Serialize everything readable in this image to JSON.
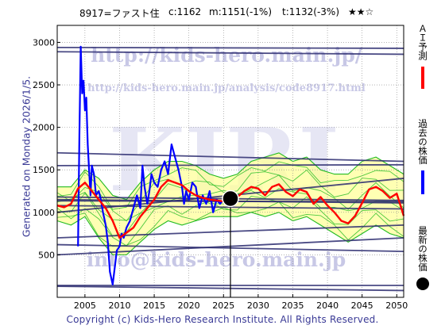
{
  "header": {
    "ticker": "8917=ファスト住",
    "current": "c:1162",
    "mid": "m:1151(-1%)",
    "target": "t:1132(-3%)",
    "rating": "★★☆"
  },
  "generated_label": "Generated on Monday 2026/1/5.",
  "copyright": "Copyright (c) Kids-Hero Research Institute. All Rights Reserved.",
  "watermarks": {
    "url_main": "http://kids-hero.main.jp/",
    "url_analysis": "http://kids-hero.main.jp/analysis/code8917.html",
    "big": "KIRI",
    "email": "info@kids-hero.main.jp"
  },
  "legend": {
    "ai_forecast": "ＡＩ予測",
    "past_price": "過去の株価",
    "latest_price": "最新の株価"
  },
  "colors": {
    "ai_forecast": "#ff0000",
    "past_price": "#0000ff",
    "latest_price": "#000000",
    "band_fill": "#ffff99",
    "band_lines": "#22bb22",
    "trend_lines": "#2a2a6e",
    "watermark": "#c8c8e6"
  },
  "chart_data": {
    "type": "line",
    "xlim": [
      2001,
      2051
    ],
    "ylim": [
      0,
      3200
    ],
    "x_ticks": [
      "2005",
      "2010",
      "2015",
      "2020",
      "2025",
      "2030",
      "2035",
      "2040",
      "2045",
      "2050"
    ],
    "y_ticks": [
      "500",
      "1000",
      "1500",
      "2000",
      "2500",
      "3000"
    ],
    "latest_point": {
      "x": 2026.0,
      "y": 1162
    },
    "series": [
      {
        "name": "過去の株価",
        "x": [
          2004.0,
          2004.2,
          2004.4,
          2004.6,
          2004.8,
          2005.0,
          2005.2,
          2005.4,
          2005.6,
          2005.8,
          2006.0,
          2006.3,
          2006.6,
          2007.0,
          2007.3,
          2007.6,
          2008.0,
          2008.3,
          2008.6,
          2009.0,
          2009.3,
          2009.6,
          2010.0,
          2010.3,
          2010.6,
          2011.0,
          2011.5,
          2012.0,
          2012.5,
          2013.0,
          2013.3,
          2013.6,
          2014.0,
          2014.3,
          2014.6,
          2015.0,
          2015.5,
          2016.0,
          2016.5,
          2017.0,
          2017.5,
          2018.0,
          2018.5,
          2019.0,
          2019.3,
          2019.6,
          2020.0,
          2020.5,
          2021.0,
          2021.5,
          2022.0,
          2022.5,
          2023.0,
          2023.5,
          2024.0,
          2024.5,
          2025.0
        ],
        "values": [
          600,
          1900,
          2950,
          2400,
          2550,
          2200,
          2350,
          1800,
          1500,
          1200,
          1550,
          1450,
          1200,
          1250,
          1150,
          1000,
          850,
          650,
          300,
          150,
          350,
          550,
          600,
          750,
          700,
          820,
          900,
          1050,
          1200,
          1050,
          1550,
          1300,
          1100,
          1250,
          1450,
          1350,
          1300,
          1500,
          1600,
          1450,
          1800,
          1650,
          1500,
          1300,
          1100,
          1250,
          1150,
          1350,
          1300,
          1050,
          1200,
          1100,
          1250,
          1000,
          1150,
          1100,
          1150
        ]
      },
      {
        "name": "ＡＩ予測",
        "x": [
          2001,
          2002,
          2003,
          2004,
          2005,
          2006,
          2007,
          2008,
          2009,
          2010,
          2011,
          2012,
          2013,
          2014,
          2015,
          2016,
          2017,
          2018,
          2019,
          2020,
          2021,
          2022,
          2023,
          2024,
          2025,
          2026,
          2027,
          2028,
          2029,
          2030,
          2031,
          2032,
          2033,
          2034,
          2035,
          2036,
          2037,
          2038,
          2039,
          2040,
          2041,
          2042,
          2043,
          2044,
          2045,
          2046,
          2047,
          2048,
          2049,
          2050,
          2051
        ],
        "values": [
          1080,
          1060,
          1100,
          1280,
          1350,
          1250,
          1150,
          1050,
          900,
          700,
          760,
          820,
          950,
          1050,
          1150,
          1300,
          1380,
          1350,
          1320,
          1250,
          1200,
          1170,
          1150,
          1140,
          1130,
          1140,
          1180,
          1250,
          1300,
          1280,
          1200,
          1300,
          1330,
          1240,
          1190,
          1270,
          1240,
          1100,
          1180,
          1080,
          1000,
          900,
          870,
          960,
          1110,
          1270,
          1300,
          1250,
          1170,
          1220,
          960
        ]
      }
    ],
    "band": {
      "x": [
        2001,
        2003,
        2005,
        2007,
        2009,
        2011,
        2013,
        2015,
        2017,
        2019,
        2021,
        2023,
        2025,
        2027,
        2029,
        2031,
        2033,
        2035,
        2037,
        2039,
        2041,
        2043,
        2045,
        2047,
        2049,
        2051
      ],
      "low": [
        900,
        850,
        950,
        700,
        500,
        500,
        650,
        800,
        900,
        850,
        900,
        950,
        950,
        950,
        1000,
        950,
        1000,
        900,
        950,
        850,
        750,
        650,
        750,
        850,
        750,
        700
      ],
      "high": [
        1300,
        1300,
        1500,
        1400,
        1200,
        1150,
        1350,
        1500,
        1600,
        1600,
        1550,
        1450,
        1400,
        1450,
        1600,
        1650,
        1700,
        1600,
        1650,
        1500,
        1450,
        1450,
        1600,
        1650,
        1550,
        1450
      ]
    },
    "trend_lines": [
      {
        "from": [
          2001,
          2940
        ],
        "to": [
          2051,
          2930
        ]
      },
      {
        "from": [
          2001,
          2890
        ],
        "to": [
          2051,
          2860
        ]
      },
      {
        "from": [
          2001,
          1700
        ],
        "to": [
          2051,
          1600
        ]
      },
      {
        "from": [
          2001,
          1550
        ],
        "to": [
          2051,
          1560
        ]
      },
      {
        "from": [
          2001,
          1180
        ],
        "to": [
          2051,
          1140
        ]
      },
      {
        "from": [
          2001,
          1150
        ],
        "to": [
          2051,
          1110
        ]
      },
      {
        "from": [
          2001,
          1135
        ],
        "to": [
          2051,
          1125
        ]
      },
      {
        "from": [
          2001,
          1000
        ],
        "to": [
          2051,
          1400
        ]
      },
      {
        "from": [
          2001,
          1080
        ],
        "to": [
          2051,
          1040
        ]
      },
      {
        "from": [
          2001,
          700
        ],
        "to": [
          2051,
          850
        ]
      },
      {
        "from": [
          2001,
          620
        ],
        "to": [
          2051,
          540
        ]
      },
      {
        "from": [
          2001,
          500
        ],
        "to": [
          2051,
          700
        ]
      },
      {
        "from": [
          2001,
          140
        ],
        "to": [
          2051,
          140
        ]
      },
      {
        "from": [
          2001,
          130
        ],
        "to": [
          2051,
          80
        ]
      }
    ]
  }
}
